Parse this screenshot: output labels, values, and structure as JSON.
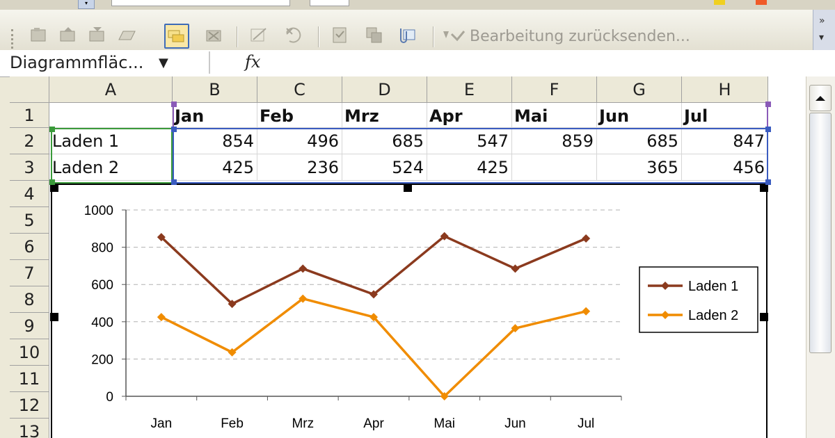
{
  "toolbar": {
    "send_back_label": "Bearbeitung zurücksenden..."
  },
  "formula_bar": {
    "name_box": "Diagrammfläc...",
    "fx_label": "fx"
  },
  "sheet": {
    "columns": [
      "A",
      "B",
      "C",
      "D",
      "E",
      "F",
      "G",
      "H"
    ],
    "rows": [
      "1",
      "2",
      "3",
      "4",
      "5",
      "6",
      "7",
      "8",
      "9",
      "10",
      "11",
      "12",
      "13"
    ],
    "months": [
      "Jan",
      "Feb",
      "Mrz",
      "Apr",
      "Mai",
      "Jun",
      "Jul"
    ],
    "row2_label": "Laden 1",
    "row3_label": "Laden 2",
    "row2_values": [
      "854",
      "496",
      "685",
      "547",
      "859",
      "685",
      "847"
    ],
    "row3_values": [
      "425",
      "236",
      "524",
      "425",
      "",
      "365",
      "456"
    ]
  },
  "colors": {
    "laden1": "#8b3a1e",
    "laden2": "#f08c00",
    "selection_blue": "#3a5bc0",
    "selection_green": "#3a9a3a",
    "selection_purple": "#8a5ab8"
  },
  "chart_data": {
    "type": "line",
    "categories": [
      "Jan",
      "Feb",
      "Mrz",
      "Apr",
      "Mai",
      "Jun",
      "Jul"
    ],
    "series": [
      {
        "name": "Laden 1",
        "values": [
          854,
          496,
          685,
          547,
          859,
          685,
          847
        ],
        "color": "#8b3a1e"
      },
      {
        "name": "Laden 2",
        "values": [
          425,
          236,
          524,
          425,
          0,
          365,
          456
        ],
        "color": "#f08c00"
      }
    ],
    "yticks": [
      "0",
      "200",
      "400",
      "600",
      "800",
      "1000"
    ],
    "ylim": [
      0,
      1000
    ],
    "grid": "horizontal dashed",
    "legend_position": "right"
  }
}
